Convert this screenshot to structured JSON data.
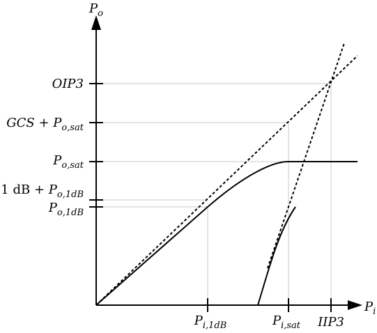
{
  "axes": {
    "y": {
      "symbol": "P",
      "sub": "o"
    },
    "x": {
      "symbol": "P",
      "sub": "i"
    }
  },
  "y_ticks": {
    "oip3": {
      "main": "OIP3"
    },
    "gcs": {
      "main": "GCS",
      "plus": " + ",
      "symbol": "P",
      "sub": "o,sat"
    },
    "psat": {
      "symbol": "P",
      "sub": "o,sat"
    },
    "onedb_plus": {
      "prefix": "1 dB",
      "plus": " + ",
      "symbol": "P",
      "sub": "o,1dB"
    },
    "p1db": {
      "symbol": "P",
      "sub": "o,1dB"
    }
  },
  "x_ticks": {
    "pi1db": {
      "symbol": "P",
      "sub": "i,1dB"
    },
    "pisat": {
      "symbol": "P",
      "sub": "i,sat"
    },
    "iip3": {
      "main": "IIP3"
    }
  }
}
